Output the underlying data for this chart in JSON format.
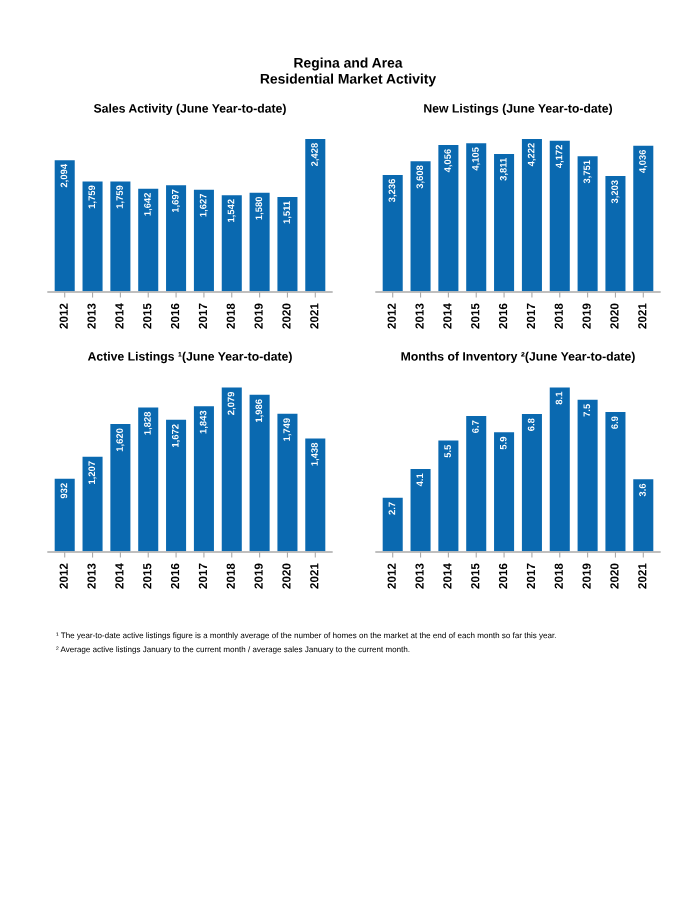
{
  "chart_data": [
    {
      "type": "other",
      "title": "Regina and Area\nResidential Market Activity",
      "annotations": [
        "¹ The year-to-date active listings figure is a monthly average of the number of homes on the market at the end of each month so far this year.",
        "² Average active listings January to the current month / average sales January to the current month."
      ]
    },
    {
      "type": "bar",
      "title": "Sales Activity (June Year-to-date)",
      "categories": [
        "2012",
        "2013",
        "2014",
        "2015",
        "2016",
        "2017",
        "2018",
        "2019",
        "2020",
        "2021"
      ],
      "values": [
        2094,
        1759,
        1759,
        1642,
        1697,
        1627,
        1542,
        1580,
        1511,
        2428
      ],
      "value_labels": [
        "2,094",
        "1,759",
        "1,759",
        "1,642",
        "1,697",
        "1,627",
        "1,542",
        "1,580",
        "1,511",
        "2,428"
      ],
      "color": "#0a69b0"
    },
    {
      "type": "bar",
      "title": "New Listings (June Year-to-date)",
      "categories": [
        "2012",
        "2013",
        "2014",
        "2015",
        "2016",
        "2017",
        "2018",
        "2019",
        "2020",
        "2021"
      ],
      "values": [
        3236,
        3608,
        4056,
        4105,
        3811,
        4222,
        4172,
        3751,
        3203,
        4036
      ],
      "value_labels": [
        "3,236",
        "3,608",
        "4,056",
        "4,105",
        "3,811",
        "4,222",
        "4,172",
        "3,751",
        "3,203",
        "4,036"
      ],
      "color": "#0a69b0"
    },
    {
      "type": "bar",
      "title": "Active Listings ¹(June Year-to-date)",
      "categories": [
        "2012",
        "2013",
        "2014",
        "2015",
        "2016",
        "2017",
        "2018",
        "2019",
        "2020",
        "2021"
      ],
      "values": [
        932,
        1207,
        1620,
        1828,
        1672,
        1843,
        2079,
        1986,
        1749,
        1438
      ],
      "value_labels": [
        "932",
        "1,207",
        "1,620",
        "1,828",
        "1,672",
        "1,843",
        "2,079",
        "1,986",
        "1,749",
        "1,438"
      ],
      "color": "#0a69b0"
    },
    {
      "type": "bar",
      "title": "Months of Inventory ²(June Year-to-date)",
      "categories": [
        "2012",
        "2013",
        "2014",
        "2015",
        "2016",
        "2017",
        "2018",
        "2019",
        "2020",
        "2021"
      ],
      "values": [
        2.7,
        4.1,
        5.5,
        6.7,
        5.9,
        6.8,
        8.1,
        7.5,
        6.9,
        3.6
      ],
      "data_labels": true,
      "color": "#0a69b0"
    }
  ]
}
